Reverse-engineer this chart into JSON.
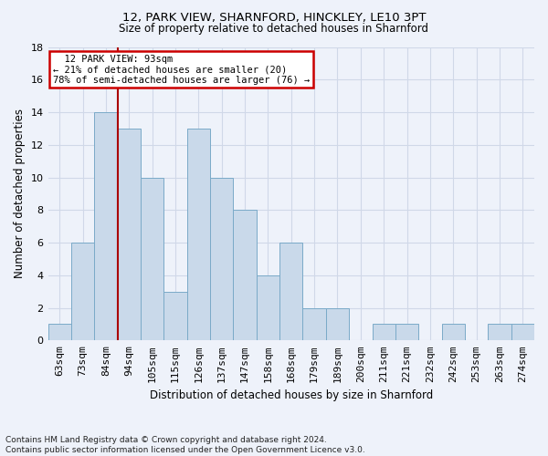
{
  "title1": "12, PARK VIEW, SHARNFORD, HINCKLEY, LE10 3PT",
  "title2": "Size of property relative to detached houses in Sharnford",
  "xlabel": "Distribution of detached houses by size in Sharnford",
  "ylabel": "Number of detached properties",
  "footnote": "Contains HM Land Registry data © Crown copyright and database right 2024.\nContains public sector information licensed under the Open Government Licence v3.0.",
  "bin_labels": [
    "63sqm",
    "73sqm",
    "84sqm",
    "94sqm",
    "105sqm",
    "115sqm",
    "126sqm",
    "137sqm",
    "147sqm",
    "158sqm",
    "168sqm",
    "179sqm",
    "189sqm",
    "200sqm",
    "211sqm",
    "221sqm",
    "232sqm",
    "242sqm",
    "253sqm",
    "263sqm",
    "274sqm"
  ],
  "bar_values": [
    1,
    6,
    14,
    13,
    10,
    3,
    13,
    10,
    8,
    4,
    6,
    2,
    2,
    0,
    1,
    1,
    0,
    1,
    0,
    1,
    1
  ],
  "bar_color": "#c9d9ea",
  "bar_edge_color": "#7aaac8",
  "background_color": "#eef2fa",
  "grid_color": "#d0d8e8",
  "annotation_text": "  12 PARK VIEW: 93sqm\n← 21% of detached houses are smaller (20)\n78% of semi-detached houses are larger (76) →",
  "annotation_box_color": "#ffffff",
  "annotation_box_edge": "#cc0000",
  "vline_color": "#aa0000",
  "ylim": [
    0,
    18
  ],
  "yticks": [
    0,
    2,
    4,
    6,
    8,
    10,
    12,
    14,
    16,
    18
  ],
  "title1_fontsize": 9.5,
  "title2_fontsize": 8.5,
  "xlabel_fontsize": 8.5,
  "ylabel_fontsize": 8.5,
  "tick_fontsize": 8,
  "footnote_fontsize": 6.5
}
